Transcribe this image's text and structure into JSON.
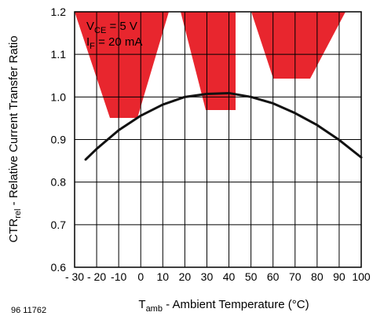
{
  "chart_data": {
    "type": "line",
    "title": "",
    "figure_id": "96 11762",
    "xlabel": {
      "main": "T",
      "sub": "amb",
      "rest": " - Ambient Temperature (°C)"
    },
    "ylabel": {
      "main": "CTR",
      "sub": "rel",
      "rest": " - Relative Current Transfer Ratio"
    },
    "annotations": [
      {
        "main": "V",
        "sub": "CE",
        "rest": " = 5 V"
      },
      {
        "main": "I",
        "sub": "F",
        "rest": " = 20 mA"
      }
    ],
    "xlim": [
      -30,
      100
    ],
    "ylim": [
      0.6,
      1.2
    ],
    "x_ticks": [
      -30,
      -20,
      -10,
      0,
      10,
      20,
      30,
      40,
      50,
      60,
      70,
      80,
      90,
      100
    ],
    "x_tick_labels": [
      "- 30",
      "- 20",
      "-10",
      "0",
      "10",
      "20",
      "30",
      "40",
      "50",
      "60",
      "70",
      "80",
      "90",
      "100"
    ],
    "y_ticks": [
      0.6,
      0.7,
      0.8,
      0.9,
      1.0,
      1.1,
      1.2
    ],
    "y_tick_labels": [
      "0.6",
      "0.7",
      "0.8",
      "0.9",
      "1.0",
      "1.1",
      "1.2"
    ],
    "grid": true,
    "series": [
      {
        "color": "#111111",
        "points": [
          [
            -25,
            0.853
          ],
          [
            -20,
            0.878
          ],
          [
            -10,
            0.922
          ],
          [
            0,
            0.956
          ],
          [
            10,
            0.982
          ],
          [
            20,
            1.0
          ],
          [
            30,
            1.007
          ],
          [
            40,
            1.009
          ],
          [
            50,
            1.0
          ],
          [
            60,
            0.985
          ],
          [
            70,
            0.962
          ],
          [
            80,
            0.934
          ],
          [
            90,
            0.899
          ],
          [
            100,
            0.858
          ]
        ]
      }
    ],
    "watermark_color": "#e8262e"
  }
}
